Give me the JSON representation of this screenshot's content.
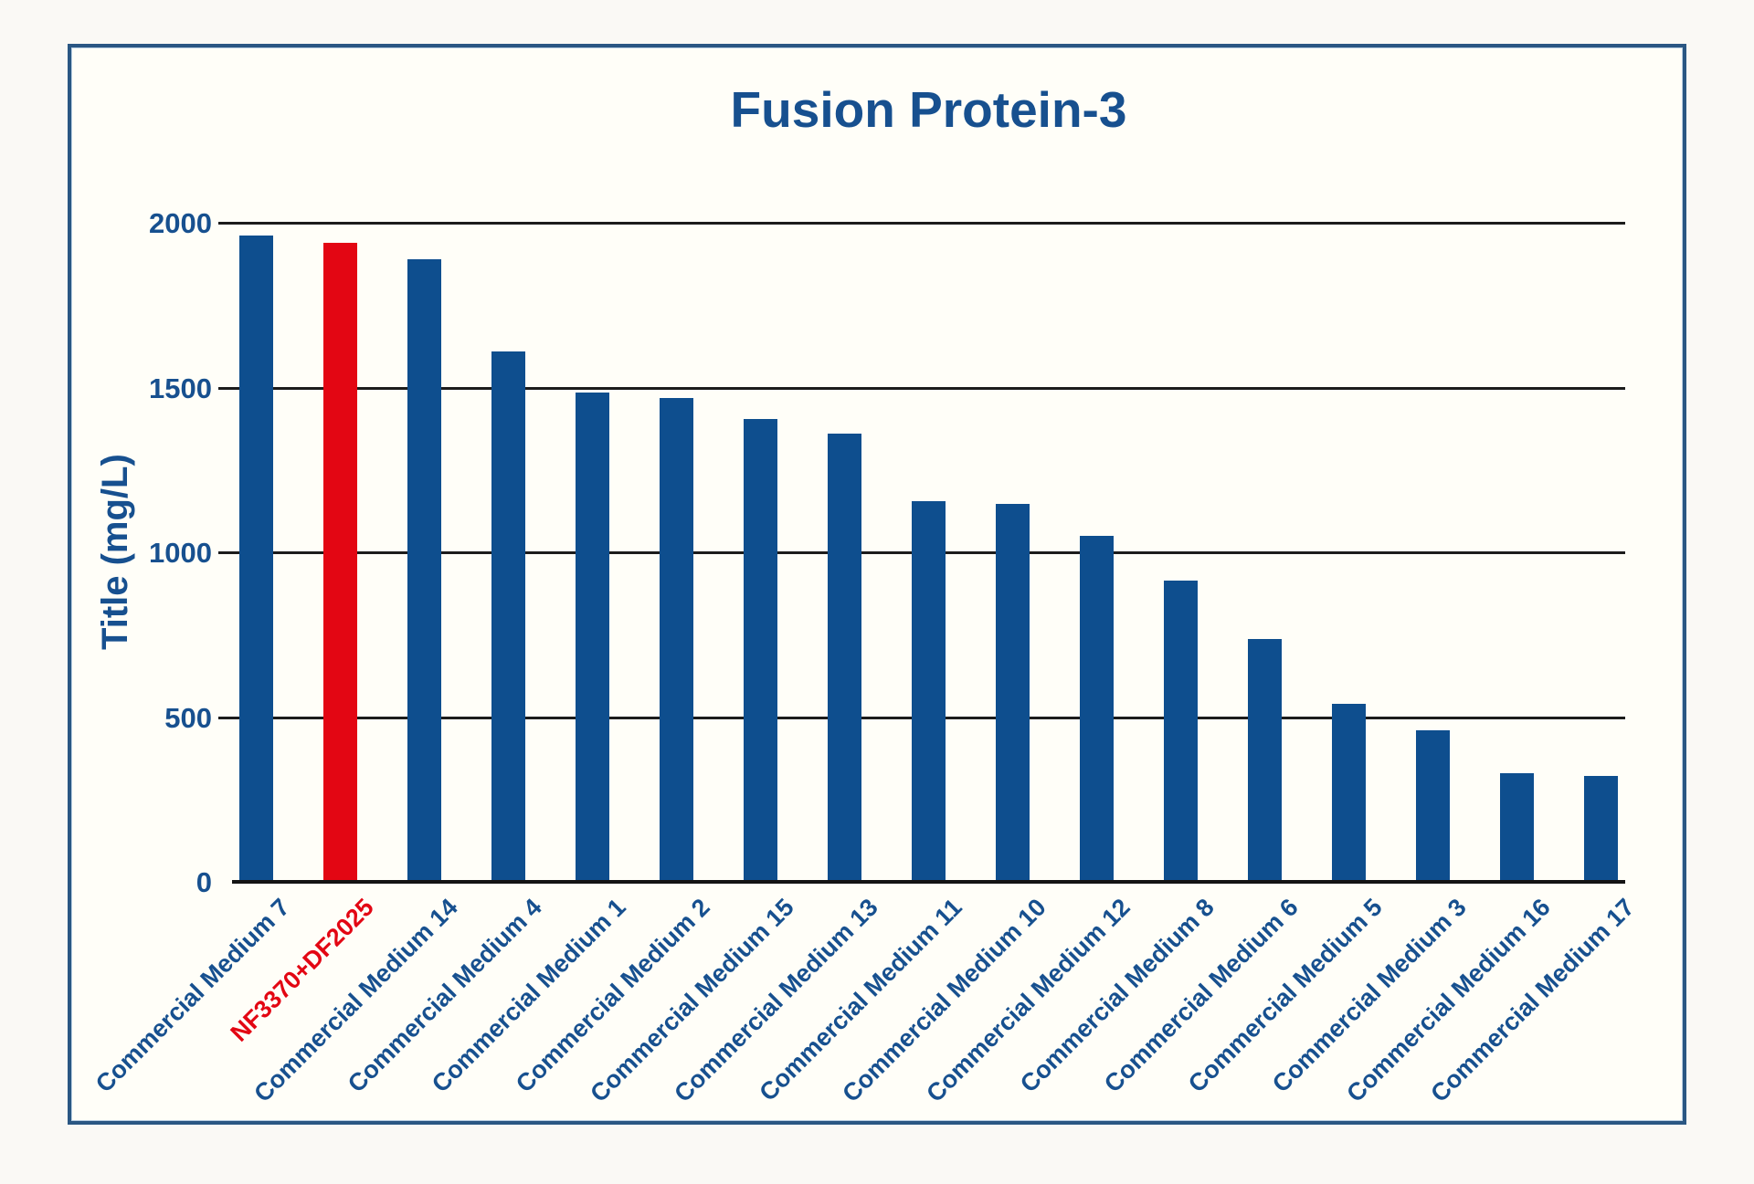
{
  "chart_data": {
    "type": "bar",
    "title": "Fusion Protein-3",
    "xlabel": "",
    "ylabel": "Title (mg/L)",
    "ylim": [
      0,
      2000
    ],
    "yticks": [
      0,
      500,
      1000,
      1500,
      2000
    ],
    "grid": "horizontal",
    "legend": "none",
    "categories": [
      "Commercial Medium 7",
      "NF3370+DF2025",
      "Commercial Medium 14",
      "Commercial Medium 4",
      "Commercial Medium 1",
      "Commercial Medium 2",
      "Commercial Medium 15",
      "Commercial Medium 13",
      "Commercial Medium 11",
      "Commercial Medium 10",
      "Commercial Medium 12",
      "Commercial Medium 8",
      "Commercial Medium 6",
      "Commercial Medium 5",
      "Commercial Medium 3",
      "Commercial Medium 16",
      "Commercial Medium 17"
    ],
    "values": [
      1960,
      1938,
      1890,
      1610,
      1485,
      1468,
      1405,
      1360,
      1155,
      1148,
      1050,
      915,
      737,
      540,
      460,
      330,
      320
    ],
    "highlight_index": 1,
    "colors": {
      "bar": "#0e4e8e",
      "highlight_bar": "#e30613",
      "text": "#17508f",
      "gridline": "#1c1c1c",
      "frame_border": "#2a5783",
      "background": "#fffef8"
    }
  }
}
